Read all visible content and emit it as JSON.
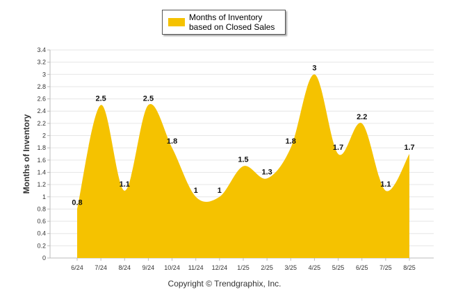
{
  "chart_data": {
    "type": "area",
    "categories": [
      "6/24",
      "7/24",
      "8/24",
      "9/24",
      "10/24",
      "11/24",
      "12/24",
      "1/25",
      "2/25",
      "3/25",
      "4/25",
      "5/25",
      "6/25",
      "7/25",
      "8/25"
    ],
    "series": [
      {
        "name": "Months of Inventory based on Closed Sales",
        "values": [
          0.8,
          2.5,
          1.1,
          2.5,
          1.8,
          1,
          1,
          1.5,
          1.3,
          1.8,
          3,
          1.7,
          2.2,
          1.1,
          1.7
        ]
      }
    ],
    "data_labels": [
      "0.8",
      "2.5",
      "1.1",
      "2.5",
      "1.8",
      "1",
      "1",
      "1.5",
      "1.3",
      "1.8",
      "3",
      "1.7",
      "2.2",
      "1.1",
      "1.7"
    ],
    "yticks": [
      "0",
      "0.2",
      "0.4",
      "0.6",
      "0.8",
      "1",
      "1.2",
      "1.4",
      "1.6",
      "1.8",
      "2",
      "2.2",
      "2.4",
      "2.6",
      "2.8",
      "3",
      "3.2",
      "3.4"
    ],
    "ylim": [
      0,
      3.4
    ],
    "ylabel": "Months of Inventory",
    "xlabel": "",
    "title": "",
    "grid": true,
    "legend": "top-center",
    "colors": {
      "fill": "#F5C200",
      "grid": "#E6E6E6",
      "axis": "#BBBBBB"
    }
  },
  "legend": {
    "label": "Months of Inventory based on Closed Sales"
  },
  "footer": {
    "copyright": "Copyright © Trendgraphix, Inc."
  }
}
